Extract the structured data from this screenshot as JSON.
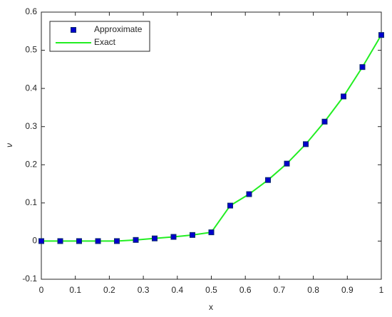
{
  "chart_data": {
    "type": "line",
    "xlabel": "x",
    "ylabel": "ν",
    "x": [
      0,
      0.0556,
      0.1111,
      0.1667,
      0.2222,
      0.2778,
      0.3333,
      0.3889,
      0.4444,
      0.5,
      0.5556,
      0.6111,
      0.6667,
      0.7222,
      0.7778,
      0.8333,
      0.8889,
      0.9444,
      1
    ],
    "series": [
      {
        "name": "Approximate",
        "mode": "markers",
        "color": "#0000cd",
        "values": [
          0,
          0,
          0,
          0,
          0,
          0.003,
          0.007,
          0.011,
          0.016,
          0.023,
          0.093,
          0.123,
          0.16,
          0.203,
          0.254,
          0.313,
          0.379,
          0.456,
          0.54
        ]
      },
      {
        "name": "Exact",
        "mode": "line",
        "color": "#22ee22",
        "values": [
          0,
          0,
          0,
          0,
          0,
          0.003,
          0.007,
          0.011,
          0.016,
          0.023,
          0.093,
          0.123,
          0.16,
          0.203,
          0.254,
          0.313,
          0.379,
          0.456,
          0.54
        ]
      }
    ],
    "xlim": [
      0,
      1
    ],
    "xticks": [
      0,
      0.1,
      0.2,
      0.3,
      0.4,
      0.5,
      0.6,
      0.7,
      0.8,
      0.9,
      1
    ],
    "ylim": [
      -0.1,
      0.6
    ],
    "yticks": [
      -0.1,
      0,
      0.1,
      0.2,
      0.3,
      0.4,
      0.5,
      0.6
    ],
    "legend": "upper left"
  }
}
